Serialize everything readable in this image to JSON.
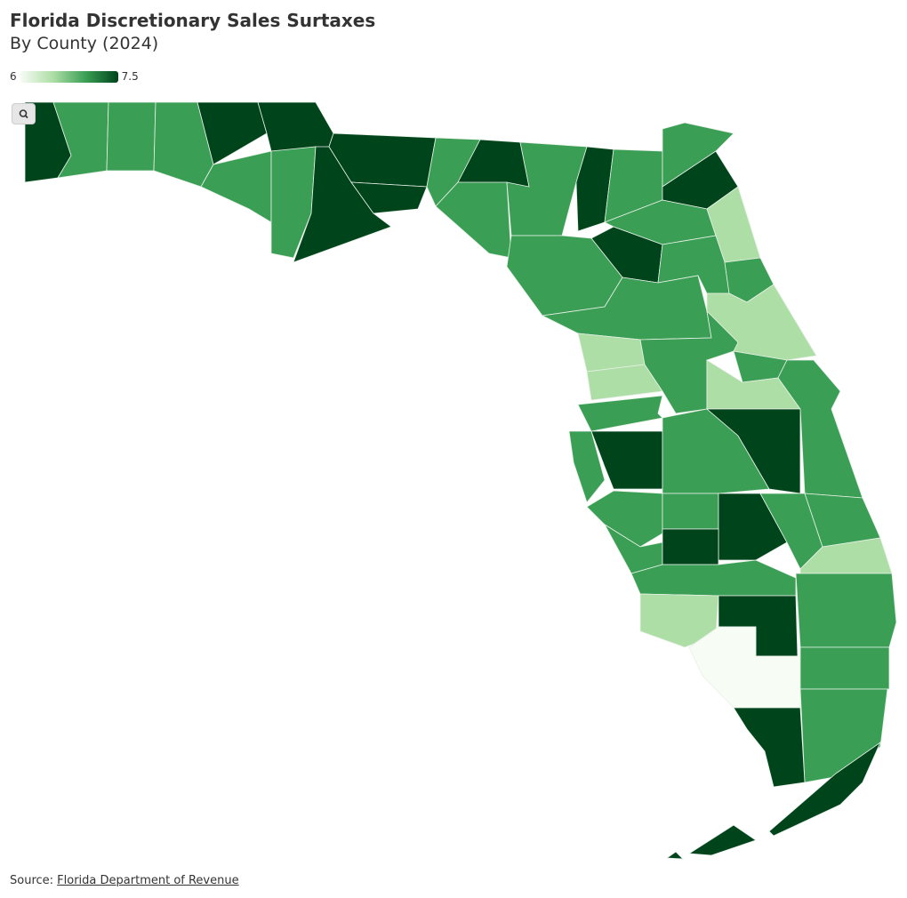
{
  "title": "Florida Discretionary Sales Surtaxes",
  "subtitle": "By County (2024)",
  "legend": {
    "min": 6,
    "max": 7.5
  },
  "color_stops": [
    "#f7fcf5",
    "#addea6",
    "#3a9f54",
    "#00441b"
  ],
  "values": [
    7.5,
    7,
    7,
    7,
    7.5,
    7.5,
    7,
    7,
    7.5,
    7.5,
    7.5,
    7,
    7.5,
    7,
    7,
    7.5,
    7,
    7,
    7.5,
    7.5,
    7,
    6.5,
    7,
    7,
    6.5,
    7,
    7,
    6.5,
    6.5,
    7,
    7,
    6.5,
    7,
    7,
    7,
    7.5,
    7,
    7.5,
    7,
    7,
    7.5,
    7,
    7.5,
    7,
    7,
    6.5,
    7,
    6.5,
    7.5,
    7,
    6,
    7,
    7,
    7.5,
    7.5,
    7.5,
    7.5
  ],
  "source": {
    "label": "Source:",
    "link": "Florida Department of Revenue"
  }
}
